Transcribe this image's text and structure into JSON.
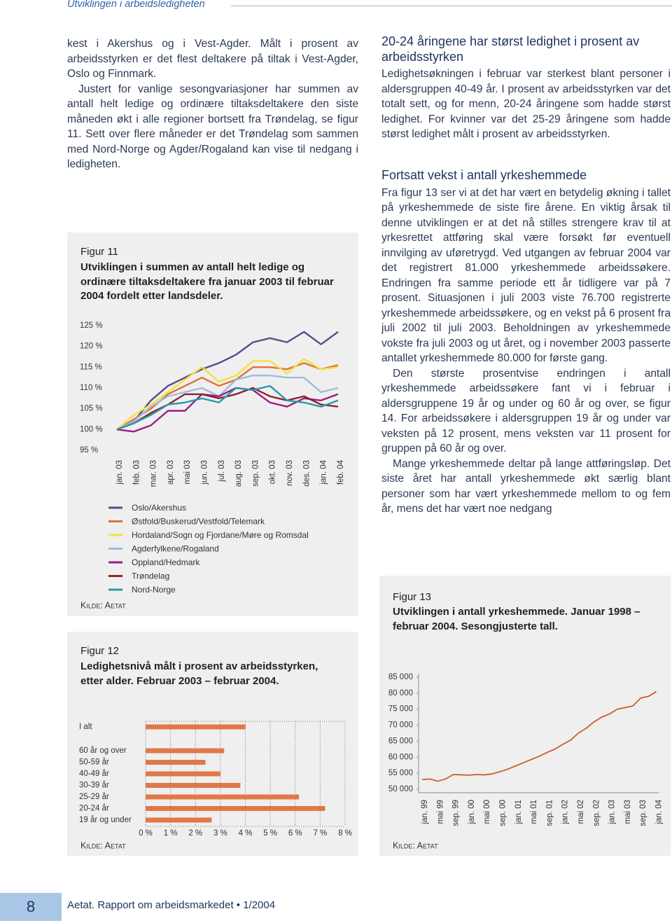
{
  "header": {
    "section": "Utviklingen i arbeidsledigheten"
  },
  "left_column": {
    "paragraphs": [
      "kest i Akershus og i Vest-Agder. Målt i prosent av arbeidsstyrken er det flest deltakere på tiltak i Vest-Agder, Oslo og Finnmark.",
      "Justert for vanlige sesongvariasjoner har summen av antall helt ledige og ordinære tiltaksdeltakere den siste måneden økt i alle regioner bortsett fra Trøndelag, se figur 11. Sett over flere måneder er det Trøndelag som sammen med Nord-Norge og Agder/Rogaland kan vise til nedgang i ledigheten."
    ]
  },
  "right_column": {
    "sections": [
      {
        "heading": "20-24 åringene har størst ledighet i prosent av arbeidsstyrken",
        "paragraphs": [
          "Ledighetsøkningen i februar var sterkest blant personer i aldersgruppen 40-49 år. I prosent av arbeidsstyrken var det totalt sett, og for menn, 20-24 åringene som hadde størst ledighet. For kvinner var det 25-29 åringene som hadde størst ledighet målt i prosent av arbeidsstyrken."
        ]
      },
      {
        "heading": "Fortsatt vekst i antall yrkeshemmede",
        "paragraphs": [
          "Fra figur 13 ser vi at det har vært en betydelig økning i tallet på yrkeshemmede de siste fire årene. En viktig årsak til denne utviklingen er at det nå stilles strengere krav til at yrkesrettet attføring skal være forsøkt før eventuell innvilging av uføretrygd. Ved utgangen av februar 2004 var det registrert 81.000 yrkeshemmede arbeidssøkere. Endringen fra samme periode ett år tidligere var på 7 prosent. Situasjonen i juli 2003 viste 76.700 registrerte yrkeshemmede arbeidssøkere, og en vekst på 6 prosent fra juli 2002 til juli 2003. Beholdningen av yrkeshemmede vokste fra juli 2003 og ut året, og i november 2003 passerte antallet yrkeshemmede 80.000 for første gang.",
          "Den største prosentvise endringen i antall yrkeshemmede arbeidssøkere fant vi i februar i aldersgruppene 19 år og under og 60 år og over, se figur 14. For arbeidssøkere i aldersgruppen 19 år og under var veksten på 12 prosent, mens veksten var 11 prosent for gruppen på 60 år og over.",
          "Mange yrkeshemmede deltar på lange attføringsløp. Det siste året har antall yrkeshemmede økt særlig blant personer som har vært yrkeshemmede mellom to og fem år, mens det har vært noe nedgang"
        ]
      }
    ]
  },
  "chart_data": [
    {
      "type": "line",
      "figure_label": "Figur 11",
      "title": "Utviklingen i summen av antall helt ledige og ordinære tiltaksdeltakere fra januar 2003 til februar 2004 fordelt etter landsdeler.",
      "source": "Kilde: Aetat",
      "categories": [
        "jan. 03",
        "feb. 03",
        "mar. 03",
        "apr. 03",
        "mai 03",
        "jun. 03",
        "jul. 03",
        "aug. 03",
        "sep. 03",
        "okt. 03",
        "nov. 03",
        "des. 03",
        "jan. 04",
        "feb. 04"
      ],
      "ylim": [
        95,
        125
      ],
      "yticks": [
        {
          "value": 125,
          "label": "125 %"
        },
        {
          "value": 120,
          "label": "120 %"
        },
        {
          "value": 115,
          "label": "115 %"
        },
        {
          "value": 110,
          "label": "110 %"
        },
        {
          "value": 105,
          "label": "105 %"
        },
        {
          "value": 100,
          "label": "100 %"
        },
        {
          "value": 95,
          "label": "95 %"
        }
      ],
      "series": [
        {
          "name": "Oslo/Akershus",
          "color": "#5a4a8c",
          "values": [
            100,
            102,
            107,
            110.5,
            112.5,
            114.5,
            116,
            118,
            121,
            122,
            121,
            123.5,
            120.5,
            123.5
          ]
        },
        {
          "name": "Østfold/Buskerud/Vestfold/Telemark",
          "color": "#e0703c",
          "values": [
            100,
            102.5,
            105,
            108.5,
            110.5,
            112.5,
            110.5,
            112,
            115,
            115,
            114.5,
            116,
            114.5,
            115.5
          ]
        },
        {
          "name": "Hordaland/Sogn og Fjordane/Møre og Romsdal",
          "color": "#f2e23c",
          "values": [
            100,
            103.5,
            106,
            109,
            112,
            115,
            111.5,
            113,
            116.5,
            116.5,
            113.5,
            117,
            114.5,
            115
          ]
        },
        {
          "name": "Agderfylkene/Rogaland",
          "color": "#9dbbe0",
          "values": [
            100,
            102,
            105.5,
            108,
            109,
            110,
            108,
            112,
            113,
            113,
            112.5,
            112.5,
            109,
            110
          ]
        },
        {
          "name": "Oppland/Hedmark",
          "color": "#9b1e82",
          "values": [
            100,
            99.5,
            101,
            104.5,
            104.5,
            108.5,
            108,
            110,
            109.5,
            106.5,
            105.5,
            107.5,
            107,
            108.5
          ]
        },
        {
          "name": "Trøndelag",
          "color": "#8a2232",
          "values": [
            100,
            101.5,
            104,
            106,
            108.5,
            108.5,
            107.5,
            108.5,
            110,
            108,
            107,
            108,
            106,
            105.5
          ]
        },
        {
          "name": "Nord-Norge",
          "color": "#2a9aa8",
          "values": [
            100,
            101.5,
            103.5,
            106,
            106.5,
            107.5,
            106.5,
            110,
            109.5,
            110.5,
            107,
            106.5,
            105.5,
            107
          ]
        }
      ]
    },
    {
      "type": "bar",
      "orientation": "horizontal",
      "figure_label": "Figur 12",
      "title": "Ledighetsnivå målt i prosent av arbeidsstyrken, etter alder. Februar 2003 – februar 2004.",
      "source": "Kilde: Aetat",
      "categories": [
        "I alt",
        "60 år og over",
        "50-59 år",
        "40-49 år",
        "30-39 år",
        "25-29 år",
        "20-24 år",
        "19 år og under"
      ],
      "values": [
        4.0,
        3.15,
        2.4,
        3.0,
        3.8,
        6.15,
        7.2,
        2.65
      ],
      "color": "#e07848",
      "xlim": [
        0,
        8
      ],
      "xticks": [
        {
          "value": 0,
          "label": "0 %"
        },
        {
          "value": 1,
          "label": "1 %"
        },
        {
          "value": 2,
          "label": "2 %"
        },
        {
          "value": 3,
          "label": "3 %"
        },
        {
          "value": 4,
          "label": "4 %"
        },
        {
          "value": 5,
          "label": "5 %"
        },
        {
          "value": 6,
          "label": "6 %"
        },
        {
          "value": 7,
          "label": "7 %"
        },
        {
          "value": 8,
          "label": "8 %"
        }
      ],
      "grid": true
    },
    {
      "type": "line",
      "figure_label": "Figur 13",
      "title": "Utviklingen i antall yrkeshemmede. Januar 1998 – februar 2004. Sesongjusterte tall.",
      "source": "Kilde: Aetat",
      "categories": [
        "jan. 99",
        null,
        "mai 99",
        null,
        "sep. 99",
        null,
        "jan. 00",
        null,
        "mai 00",
        null,
        "sep. 00",
        null,
        "jan. 01",
        null,
        "mai 01",
        null,
        "sep. 01",
        null,
        "jan. 02",
        null,
        "mai 02",
        null,
        "sep. 02",
        null,
        "jan. 03",
        null,
        "mai 03",
        null,
        "sep. 03",
        null,
        "jan. 04"
      ],
      "values": [
        53000,
        53200,
        52500,
        53200,
        54600,
        54500,
        54400,
        54600,
        54500,
        54800,
        55500,
        56300,
        57300,
        58300,
        59300,
        60300,
        61500,
        62500,
        64000,
        65300,
        67500,
        69000,
        71000,
        72500,
        73500,
        75000,
        75500,
        76000,
        78500,
        79000,
        80500
      ],
      "color": "#c8602a",
      "ylim": [
        50000,
        85000
      ],
      "yticks": [
        {
          "value": 50000,
          "label": "50 000"
        },
        {
          "value": 55000,
          "label": "55 000"
        },
        {
          "value": 60000,
          "label": "60 000"
        },
        {
          "value": 65000,
          "label": "65 000"
        },
        {
          "value": 70000,
          "label": "70 000"
        },
        {
          "value": 75000,
          "label": "75 000"
        },
        {
          "value": 80000,
          "label": "80 000"
        },
        {
          "value": 85000,
          "label": "85 000"
        }
      ]
    }
  ],
  "footer": {
    "page_number": "8",
    "publication": "Aetat. Rapport om arbeidsmarkedet • 1/2004"
  }
}
